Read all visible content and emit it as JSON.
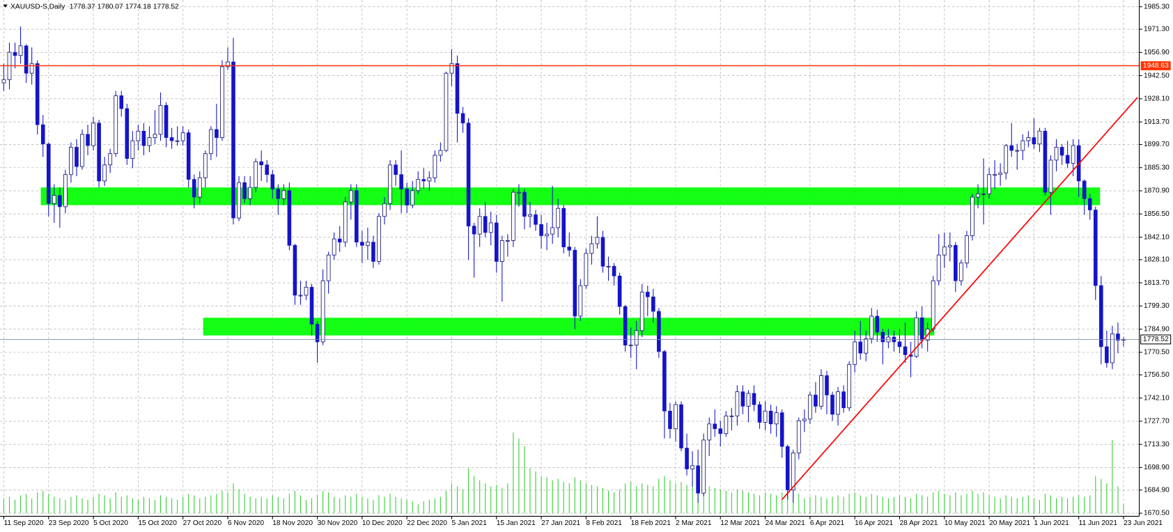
{
  "chart_data": {
    "type": "candlestick",
    "title": "XAUUSD-S,Daily",
    "categories": [
      "11 Sep 2020",
      null,
      null,
      null,
      null,
      null,
      null,
      null,
      "23 Sep 2020",
      null,
      null,
      null,
      null,
      null,
      null,
      null,
      "5 Oct 2020",
      null,
      null,
      null,
      null,
      null,
      null,
      null,
      "15 Oct 2020",
      null,
      null,
      null,
      null,
      null,
      null,
      null,
      "27 Oct 2020",
      null,
      null,
      null,
      null,
      null,
      null,
      null,
      "6 Nov 2020",
      null,
      null,
      null,
      null,
      null,
      null,
      null,
      "18 Nov 2020",
      null,
      null,
      null,
      null,
      null,
      null,
      null,
      "30 Nov 2020",
      null,
      null,
      null,
      null,
      null,
      null,
      null,
      "10 Dec 2020",
      null,
      null,
      null,
      null,
      null,
      null,
      null,
      "22 Dec 2020",
      null,
      null,
      null,
      null,
      null,
      null,
      null,
      "5 Jan 2021",
      null,
      null,
      null,
      null,
      null,
      null,
      null,
      "15 Jan 2021",
      null,
      null,
      null,
      null,
      null,
      null,
      null,
      "27 Jan 2021",
      null,
      null,
      null,
      null,
      null,
      null,
      null,
      "8 Feb 2021",
      null,
      null,
      null,
      null,
      null,
      null,
      null,
      "18 Feb 2021",
      null,
      null,
      null,
      null,
      null,
      null,
      null,
      "2 Mar 2021",
      null,
      null,
      null,
      null,
      null,
      null,
      null,
      "12 Mar 2021",
      null,
      null,
      null,
      null,
      null,
      null,
      null,
      "24 Mar 2021",
      null,
      null,
      null,
      null,
      null,
      null,
      null,
      "6 Apr 2021",
      null,
      null,
      null,
      null,
      null,
      null,
      null,
      "16 Apr 2021",
      null,
      null,
      null,
      null,
      null,
      null,
      null,
      "28 Apr 2021",
      null,
      null,
      null,
      null,
      null,
      null,
      null,
      "10 May 2021",
      null,
      null,
      null,
      null,
      null,
      null,
      null,
      "20 May 2021",
      null,
      null,
      null,
      null,
      null,
      null,
      null,
      "1 Jun 2021",
      null,
      null,
      null,
      null,
      null,
      null,
      null,
      "11 Jun 2021",
      null,
      null,
      null,
      null,
      null,
      null,
      null,
      "23 Jun 2021"
    ],
    "open": [
      1938,
      1940,
      1957,
      1955,
      1961,
      1944,
      1950,
      1912,
      1900,
      1863,
      1868,
      1861,
      1881,
      1898,
      1886,
      1906,
      1899,
      1913,
      1877,
      1887,
      1894,
      1930,
      1922,
      1891,
      1902,
      1908,
      1899,
      1904,
      1906,
      1924,
      1904,
      1902,
      1902,
      1907,
      1878,
      1867,
      1879,
      1894,
      1909,
      1904,
      1948,
      1951,
      1854,
      1876,
      1866,
      1873,
      1889,
      1887,
      1881,
      1872,
      1866,
      1871,
      1837,
      1806,
      1806,
      1811,
      1788,
      1777,
      1815,
      1831,
      1841,
      1839,
      1864,
      1871,
      1839,
      1837,
      1839,
      1827,
      1855,
      1863,
      1887,
      1881,
      1872,
      1862,
      1871,
      1878,
      1877,
      1879,
      1893,
      1896,
      1944,
      1950,
      1919,
      1913,
      1849,
      1844,
      1855,
      1845,
      1851,
      1827,
      1840,
      1840,
      1870,
      1870,
      1855,
      1856,
      1850,
      1843,
      1844,
      1848,
      1860,
      1836,
      1834,
      1793,
      1812,
      1832,
      1838,
      1842,
      1824,
      1824,
      1818,
      1799,
      1775,
      1775,
      1784,
      1808,
      1805,
      1796,
      1771,
      1734,
      1723,
      1738,
      1711,
      1698,
      1700,
      1683,
      1716,
      1726,
      1723,
      1720,
      1731,
      1731,
      1746,
      1737,
      1745,
      1738,
      1727,
      1734,
      1726,
      1733,
      1712,
      1685,
      1708,
      1728,
      1729,
      1744,
      1737,
      1756,
      1744,
      1732,
      1746,
      1736,
      1763,
      1777,
      1770,
      1779,
      1793,
      1783,
      1777,
      1780,
      1777,
      1774,
      1769,
      1768,
      1792,
      1778,
      1785,
      1815,
      1831,
      1836,
      1837,
      1815,
      1826,
      1843,
      1867,
      1869,
      1869,
      1881,
      1881,
      1882,
      1899,
      1896,
      1896,
      1902,
      1904,
      1900,
      1908,
      1870,
      1890,
      1898,
      1893,
      1888,
      1899,
      1877,
      1866,
      1859,
      1812,
      1774,
      1764,
      1782,
      1778.37
    ],
    "high": [
      1950,
      1963,
      1963,
      1973,
      1962,
      1960,
      1952,
      1918,
      1901,
      1875,
      1873,
      1884,
      1901,
      1903,
      1909,
      1912,
      1917,
      1915,
      1892,
      1897,
      1933,
      1933,
      1925,
      1908,
      1912,
      1913,
      1911,
      1921,
      1932,
      1926,
      1910,
      1911,
      1911,
      1909,
      1881,
      1883,
      1896,
      1911,
      1925,
      1952,
      1960,
      1966,
      1880,
      1880,
      1880,
      1891,
      1896,
      1890,
      1884,
      1875,
      1875,
      1876,
      1838,
      1815,
      1815,
      1813,
      1790,
      1822,
      1833,
      1845,
      1849,
      1867,
      1875,
      1875,
      1846,
      1848,
      1843,
      1857,
      1867,
      1890,
      1890,
      1896,
      1876,
      1877,
      1883,
      1885,
      1883,
      1896,
      1901,
      1945,
      1959,
      1955,
      1923,
      1916,
      1851,
      1860,
      1864,
      1858,
      1856,
      1843,
      1844,
      1872,
      1875,
      1872,
      1864,
      1859,
      1856,
      1851,
      1874,
      1866,
      1862,
      1845,
      1836,
      1816,
      1835,
      1843,
      1855,
      1846,
      1830,
      1826,
      1820,
      1800,
      1786,
      1790,
      1813,
      1812,
      1810,
      1798,
      1772,
      1739,
      1740,
      1740,
      1720,
      1709,
      1710,
      1720,
      1730,
      1735,
      1728,
      1734,
      1736,
      1750,
      1750,
      1747,
      1750,
      1740,
      1740,
      1738,
      1737,
      1735,
      1713,
      1710,
      1730,
      1735,
      1746,
      1752,
      1760,
      1759,
      1746,
      1749,
      1750,
      1765,
      1784,
      1790,
      1784,
      1798,
      1797,
      1785,
      1785,
      1784,
      1785,
      1789,
      1777,
      1796,
      1799,
      1789,
      1818,
      1844,
      1845,
      1845,
      1839,
      1828,
      1846,
      1869,
      1875,
      1891,
      1885,
      1890,
      1888,
      1900,
      1913,
      1900,
      1906,
      1908,
      1916,
      1910,
      1910,
      1893,
      1903,
      1900,
      1902,
      1903,
      1903,
      1878,
      1869,
      1861,
      1818,
      1784,
      1787,
      1789,
      1780.07
    ],
    "low": [
      1933,
      1934,
      1947,
      1950,
      1938,
      1937,
      1906,
      1892,
      1855,
      1851,
      1848,
      1857,
      1876,
      1880,
      1884,
      1893,
      1896,
      1873,
      1874,
      1882,
      1892,
      1917,
      1887,
      1885,
      1896,
      1893,
      1895,
      1900,
      1902,
      1898,
      1897,
      1899,
      1899,
      1873,
      1860,
      1863,
      1873,
      1890,
      1892,
      1902,
      1946,
      1850,
      1852,
      1863,
      1862,
      1870,
      1877,
      1876,
      1866,
      1856,
      1862,
      1834,
      1800,
      1800,
      1803,
      1781,
      1764,
      1775,
      1807,
      1828,
      1833,
      1836,
      1853,
      1836,
      1826,
      1828,
      1823,
      1825,
      1850,
      1859,
      1874,
      1857,
      1857,
      1860,
      1869,
      1872,
      1871,
      1876,
      1889,
      1895,
      1936,
      1901,
      1907,
      1828,
      1817,
      1836,
      1842,
      1837,
      1820,
      1802,
      1830,
      1836,
      1861,
      1847,
      1848,
      1846,
      1835,
      1834,
      1838,
      1842,
      1832,
      1830,
      1785,
      1790,
      1810,
      1825,
      1835,
      1820,
      1815,
      1812,
      1794,
      1771,
      1767,
      1760,
      1780,
      1793,
      1789,
      1767,
      1717,
      1717,
      1715,
      1709,
      1694,
      1687,
      1677,
      1681,
      1706,
      1718,
      1712,
      1718,
      1722,
      1725,
      1732,
      1727,
      1734,
      1723,
      1722,
      1720,
      1718,
      1705,
      1679,
      1677,
      1704,
      1721,
      1726,
      1733,
      1735,
      1732,
      1728,
      1725,
      1733,
      1734,
      1758,
      1766,
      1765,
      1776,
      1777,
      1763,
      1773,
      1771,
      1770,
      1764,
      1755,
      1767,
      1773,
      1771,
      1783,
      1812,
      1823,
      1827,
      1808,
      1812,
      1823,
      1840,
      1860,
      1850,
      1866,
      1872,
      1874,
      1878,
      1892,
      1884,
      1890,
      1898,
      1897,
      1895,
      1868,
      1856,
      1883,
      1887,
      1885,
      1880,
      1867,
      1856,
      1853,
      1803,
      1763,
      1761,
      1760,
      1770,
      1774.18
    ],
    "close": [
      1940,
      1957,
      1955,
      1961,
      1944,
      1950,
      1912,
      1900,
      1863,
      1868,
      1861,
      1881,
      1898,
      1886,
      1906,
      1899,
      1913,
      1877,
      1887,
      1894,
      1930,
      1922,
      1891,
      1902,
      1908,
      1899,
      1904,
      1906,
      1924,
      1904,
      1902,
      1902,
      1907,
      1878,
      1867,
      1879,
      1894,
      1909,
      1904,
      1948,
      1951,
      1854,
      1876,
      1866,
      1873,
      1889,
      1887,
      1881,
      1872,
      1866,
      1871,
      1837,
      1806,
      1806,
      1811,
      1788,
      1777,
      1815,
      1831,
      1841,
      1839,
      1864,
      1871,
      1839,
      1837,
      1839,
      1827,
      1855,
      1863,
      1887,
      1881,
      1872,
      1862,
      1871,
      1878,
      1877,
      1879,
      1893,
      1896,
      1944,
      1950,
      1919,
      1913,
      1849,
      1844,
      1855,
      1845,
      1851,
      1827,
      1840,
      1840,
      1870,
      1870,
      1855,
      1856,
      1850,
      1843,
      1844,
      1848,
      1860,
      1836,
      1834,
      1793,
      1812,
      1832,
      1838,
      1842,
      1824,
      1824,
      1818,
      1799,
      1775,
      1775,
      1784,
      1808,
      1805,
      1796,
      1771,
      1734,
      1723,
      1738,
      1711,
      1698,
      1700,
      1683,
      1716,
      1726,
      1723,
      1720,
      1731,
      1731,
      1746,
      1737,
      1745,
      1738,
      1727,
      1734,
      1726,
      1733,
      1712,
      1685,
      1708,
      1728,
      1729,
      1744,
      1737,
      1756,
      1744,
      1732,
      1746,
      1736,
      1763,
      1777,
      1770,
      1779,
      1793,
      1783,
      1777,
      1780,
      1777,
      1774,
      1769,
      1768,
      1792,
      1778,
      1785,
      1815,
      1831,
      1836,
      1837,
      1815,
      1826,
      1843,
      1867,
      1869,
      1869,
      1881,
      1881,
      1882,
      1899,
      1896,
      1896,
      1902,
      1904,
      1900,
      1908,
      1870,
      1890,
      1898,
      1893,
      1888,
      1899,
      1877,
      1866,
      1859,
      1812,
      1774,
      1764,
      1782,
      1778,
      1778.52
    ],
    "volume": [
      20,
      22,
      18,
      24,
      26,
      20,
      28,
      30,
      26,
      22,
      20,
      18,
      22,
      24,
      20,
      18,
      22,
      26,
      24,
      20,
      28,
      22,
      24,
      20,
      18,
      22,
      20,
      18,
      24,
      22,
      20,
      18,
      22,
      26,
      24,
      20,
      22,
      24,
      26,
      30,
      28,
      40,
      32,
      26,
      22,
      20,
      22,
      20,
      24,
      22,
      20,
      26,
      30,
      24,
      18,
      20,
      24,
      30,
      28,
      22,
      20,
      24,
      22,
      26,
      22,
      20,
      18,
      24,
      22,
      26,
      22,
      20,
      18,
      16,
      12,
      16,
      18,
      20,
      22,
      30,
      40,
      36,
      32,
      60,
      50,
      44,
      40,
      36,
      38,
      34,
      40,
      108,
      100,
      90,
      60,
      56,
      50,
      48,
      44,
      46,
      42,
      40,
      48,
      44,
      40,
      38,
      36,
      34,
      30,
      28,
      32,
      40,
      42,
      36,
      40,
      38,
      36,
      46,
      50,
      44,
      40,
      42,
      38,
      44,
      48,
      40,
      36,
      34,
      32,
      30,
      28,
      32,
      30,
      28,
      26,
      24,
      28,
      26,
      24,
      28,
      30,
      28,
      26,
      20,
      22,
      24,
      22,
      20,
      22,
      24,
      22,
      26,
      28,
      24,
      22,
      26,
      24,
      22,
      20,
      22,
      24,
      22,
      20,
      26,
      24,
      22,
      28,
      30,
      26,
      24,
      28,
      24,
      26,
      30,
      26,
      28,
      24,
      22,
      20,
      24,
      22,
      20,
      22,
      24,
      20,
      18,
      26,
      24,
      20,
      22,
      20,
      22,
      24,
      22,
      24,
      50,
      46,
      40,
      98,
      36,
      12
    ],
    "up_color": "#ffffff",
    "down_color": "#1414c8",
    "wick_color": "#1414c8",
    "volume_color": "#32cd32",
    "ylim": [
      1668.6,
      1989.5
    ],
    "yticks": [
      {
        "value": 1985.3,
        "label": "1985.30"
      },
      {
        "value": 1971.3,
        "label": "1971.30"
      },
      {
        "value": 1956.9,
        "label": "1956.90"
      },
      {
        "value": 1942.5,
        "label": "1942.50"
      },
      {
        "value": 1928.1,
        "label": "1928.10"
      },
      {
        "value": 1913.7,
        "label": "1913.70"
      },
      {
        "value": 1899.7,
        "label": "1899.70"
      },
      {
        "value": 1885.3,
        "label": "1885.30"
      },
      {
        "value": 1870.9,
        "label": "1870.90"
      },
      {
        "value": 1856.5,
        "label": "1856.50"
      },
      {
        "value": 1842.1,
        "label": "1842.10"
      },
      {
        "value": 1828.1,
        "label": "1828.10"
      },
      {
        "value": 1813.7,
        "label": "1813.70"
      },
      {
        "value": 1799.3,
        "label": "1799.30"
      },
      {
        "value": 1784.9,
        "label": "1784.90"
      },
      {
        "value": 1770.5,
        "label": "1770.50"
      },
      {
        "value": 1756.5,
        "label": "1756.50"
      },
      {
        "value": 1742.1,
        "label": "1742.10"
      },
      {
        "value": 1727.7,
        "label": "1727.70"
      },
      {
        "value": 1713.3,
        "label": "1713.30"
      },
      {
        "value": 1698.9,
        "label": "1698.90"
      },
      {
        "value": 1684.9,
        "label": "1684.90"
      },
      {
        "value": 1670.5,
        "label": "1670.50"
      }
    ],
    "grid": true,
    "level": {
      "value": 1948.63,
      "color": "#ff3300"
    },
    "zones": [
      {
        "x": [
          6.6,
          195.8
        ],
        "y": [
          1862,
          1873
        ],
        "color": "#00ff00"
      },
      {
        "x": [
          35.6,
          166.2
        ],
        "y": [
          1781,
          1792
        ],
        "color": "#00ff00"
      }
    ],
    "trendline": {
      "x": [
        139,
        202.5
      ],
      "y": [
        1679,
        1929
      ],
      "color": "#ff0000"
    }
  }
}
